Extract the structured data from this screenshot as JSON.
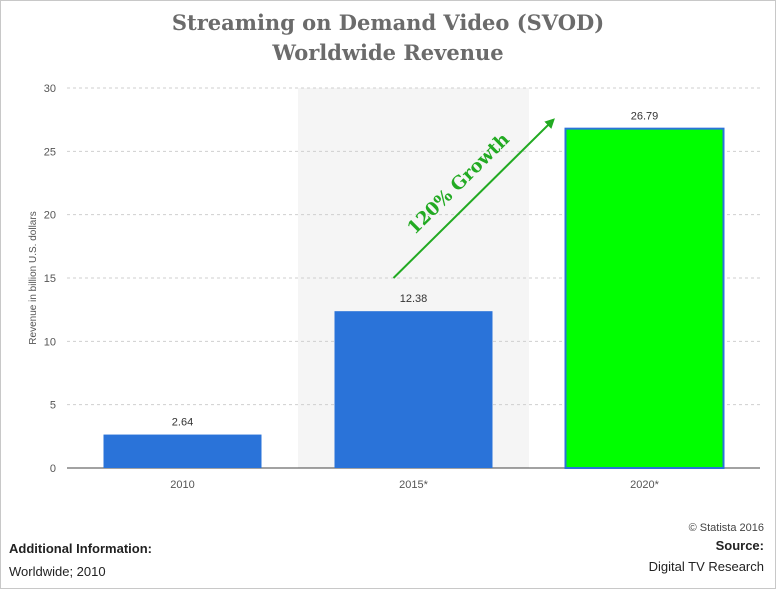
{
  "title_line1": "Streaming on Demand Video (SVOD)",
  "title_line2": "Worldwide Revenue",
  "chart_data": {
    "type": "bar",
    "categories": [
      "2010",
      "2015*",
      "2020*"
    ],
    "values": [
      2.64,
      12.38,
      26.79
    ],
    "value_labels": [
      "2.64",
      "12.38",
      "26.79"
    ],
    "ylabel": "Revenue in billion U.S. dollars",
    "xlabel": "",
    "ylim": [
      0,
      30
    ],
    "yticks": [
      0,
      5,
      10,
      15,
      20,
      25,
      30
    ],
    "grid": true,
    "bar_colors": [
      "#2a73d9",
      "#2a73d9",
      "#00ff00"
    ],
    "highlight_border_color": "#2a73d9",
    "shaded_category": "2015*",
    "annotation": {
      "text": "120% Growth",
      "color": "#22aa22",
      "from_value": 15,
      "to_value": 27.5
    }
  },
  "copyright": "© Statista 2016",
  "additional_info_label": "Additional Information:",
  "additional_info_value": "Worldwide; 2010",
  "source_label": "Source:",
  "source_value": "Digital TV Research"
}
